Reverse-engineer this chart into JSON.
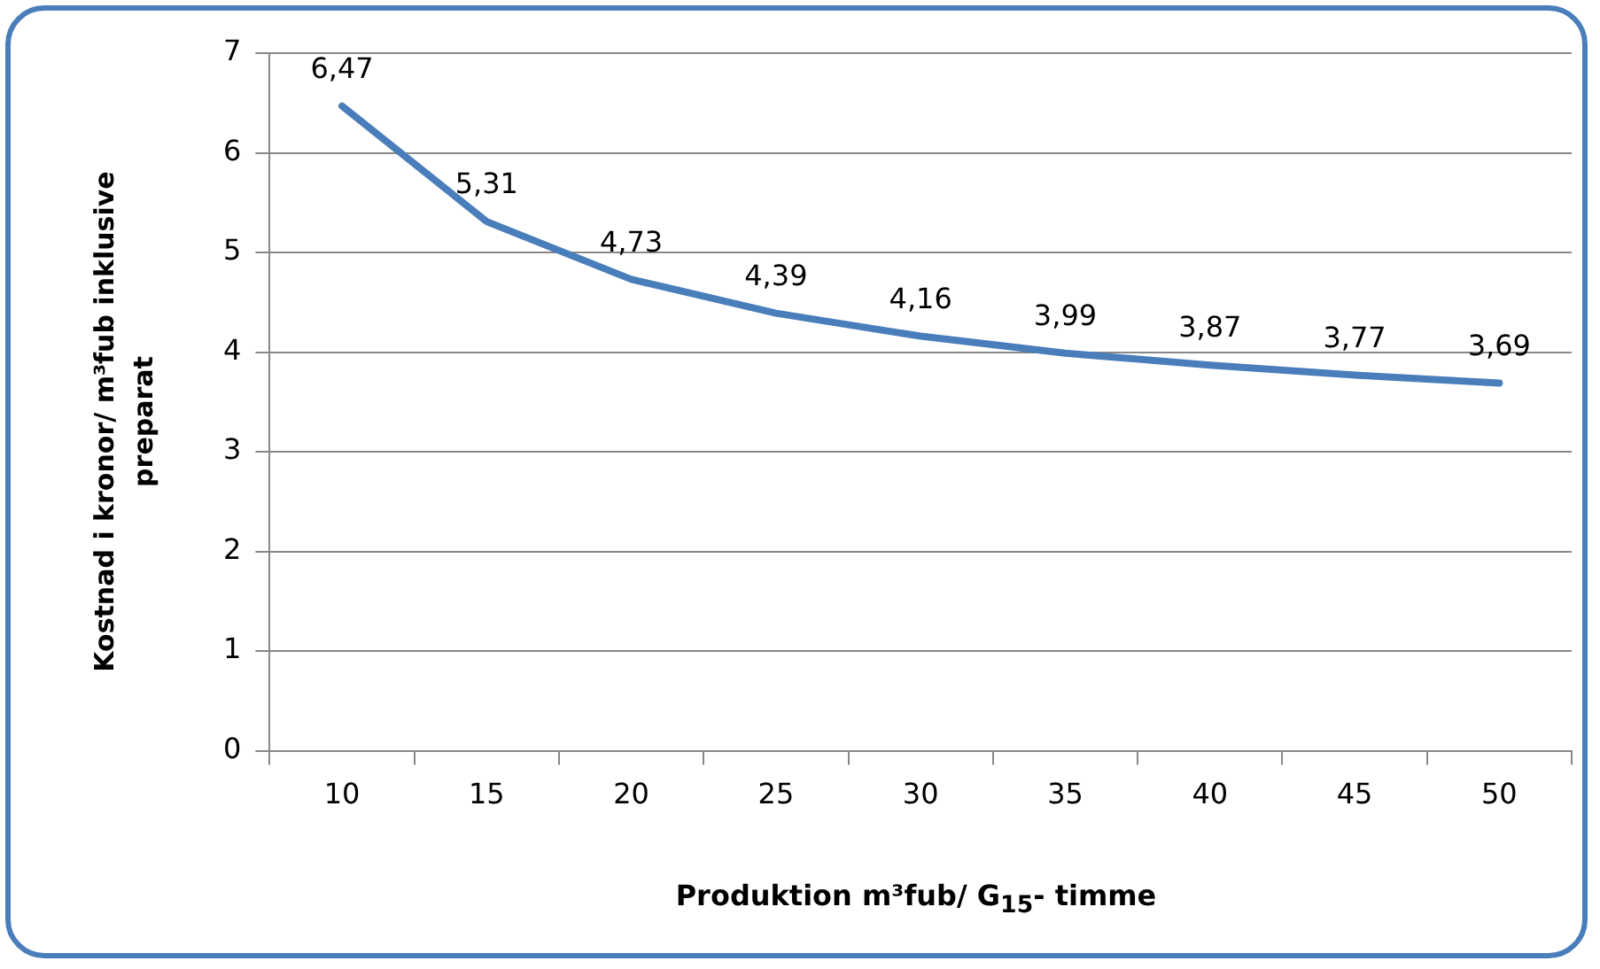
{
  "chart_data": {
    "type": "line",
    "xlabel": "Produktion m³fub/ G$_{15}$- timme",
    "ylabel": "Kostnad i kronor/ m³fub inklusive preparat",
    "categories": [
      "10",
      "15",
      "20",
      "25",
      "30",
      "35",
      "40",
      "45",
      "50"
    ],
    "series": [
      {
        "color": "#4a7ebb",
        "values": [
          6.47,
          5.31,
          4.73,
          4.39,
          4.16,
          3.99,
          3.87,
          3.77,
          3.69
        ],
        "value_labels": [
          "6,47",
          "5,31",
          "4,73",
          "4,39",
          "4,16",
          "3,99",
          "3,87",
          "3,77",
          "3,69"
        ]
      }
    ],
    "ylim": [
      0,
      7
    ],
    "yticks": [
      0,
      1,
      2,
      3,
      4,
      5,
      6,
      7
    ],
    "grid": "y",
    "legend": false,
    "marker": "none",
    "line_style": "solid"
  }
}
